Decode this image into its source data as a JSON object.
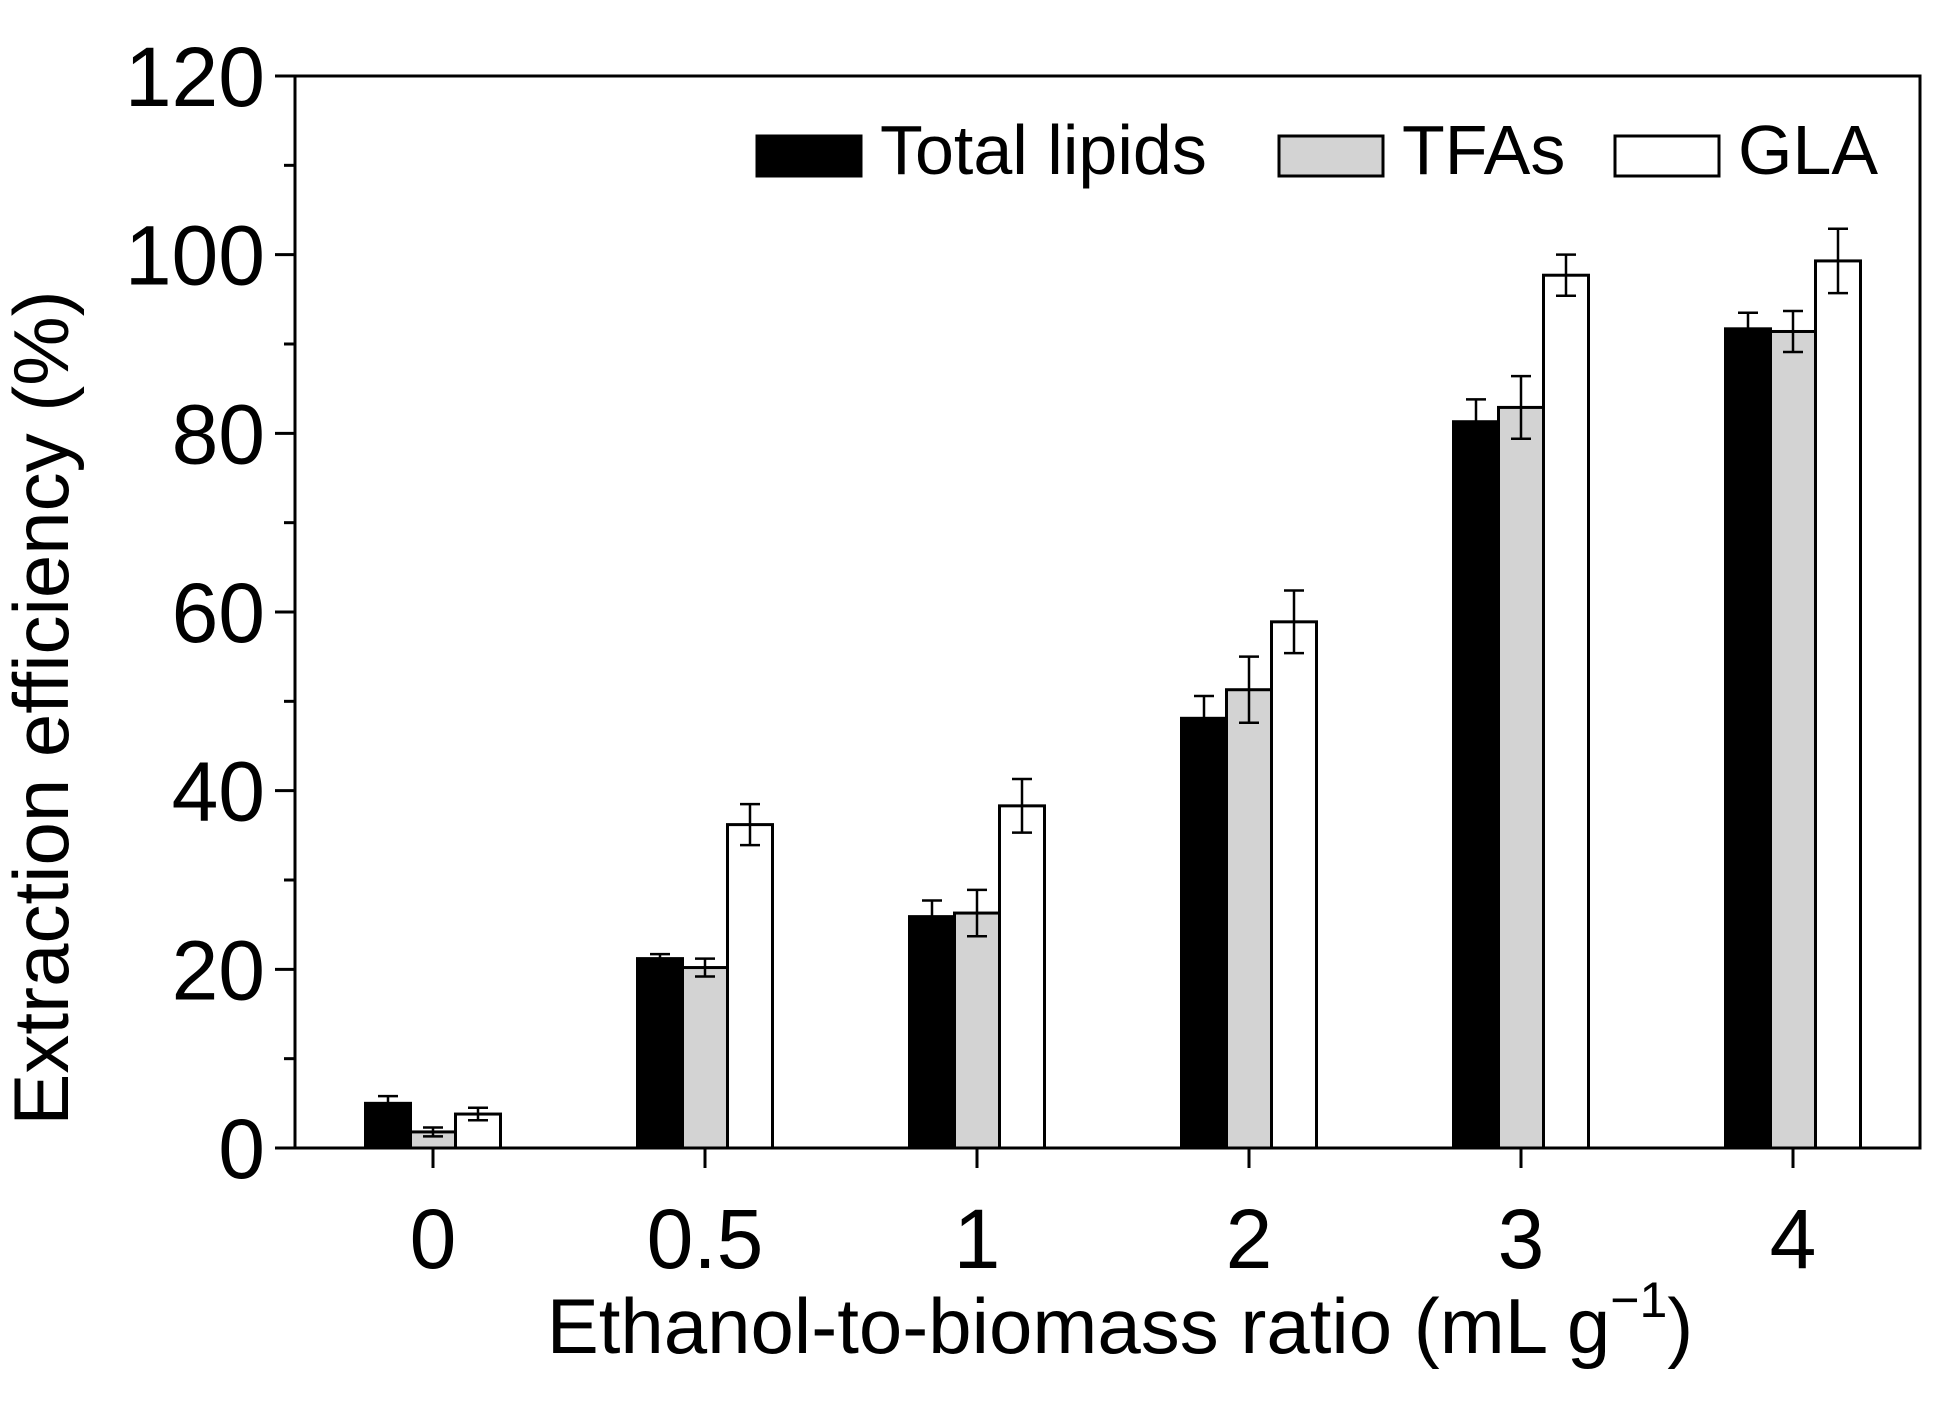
{
  "chart_data": {
    "type": "bar",
    "title": "",
    "xlabel": "Ethanol-to-biomass ratio (mL g",
    "xlabel_sup": "−1",
    "xlabel_close": ")",
    "ylabel": "Extraction efficiency (%)",
    "ylim": [
      0,
      120
    ],
    "yticks": [
      "0",
      "20",
      "40",
      "60",
      "80",
      "100",
      "120"
    ],
    "categories": [
      "0",
      "0.5",
      "1",
      "2",
      "3",
      "4"
    ],
    "legend_position": "top-right",
    "series": [
      {
        "name": "Total lipids",
        "color": "#000000",
        "values": [
          5.0,
          21.2,
          25.9,
          48.1,
          81.3,
          91.7
        ],
        "errors": [
          0.8,
          0.5,
          1.8,
          2.5,
          2.5,
          1.8
        ]
      },
      {
        "name": "TFAs",
        "color": "#d3d3d3",
        "values": [
          1.8,
          20.2,
          26.3,
          51.3,
          82.9,
          91.4
        ],
        "errors": [
          0.5,
          1.0,
          2.6,
          3.7,
          3.5,
          2.3
        ]
      },
      {
        "name": "GLA",
        "color": "#ffffff",
        "values": [
          3.8,
          36.2,
          38.3,
          58.9,
          97.7,
          99.3
        ],
        "errors": [
          0.7,
          2.3,
          3.0,
          3.5,
          2.3,
          3.6
        ]
      }
    ]
  }
}
